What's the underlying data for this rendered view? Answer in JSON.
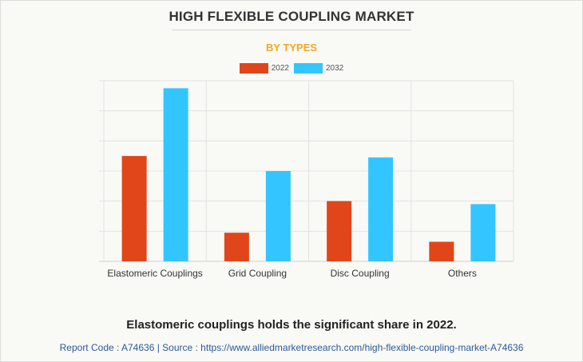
{
  "header": {
    "title": "HIGH FLEXIBLE COUPLING MARKET",
    "subtitle": "BY TYPES"
  },
  "chart_data": {
    "type": "bar",
    "categories": [
      "Elastomeric Couplings",
      "Grid Coupling",
      "Disc Coupling",
      "Others"
    ],
    "series": [
      {
        "name": "2022",
        "color": "#e0461a",
        "values": [
          3.5,
          0.95,
          2.0,
          0.65
        ]
      },
      {
        "name": "2032",
        "color": "#33c5ff",
        "values": [
          5.75,
          3.0,
          3.45,
          1.9
        ]
      }
    ],
    "ylim": [
      0,
      6
    ],
    "grid": true,
    "legend_position": "top-center",
    "xlabel": "",
    "ylabel": ""
  },
  "footer": {
    "caption": "Elastomeric couplings holds the significant share in 2022.",
    "source": "Report Code : A74636  |  Source : https://www.alliedmarketresearch.com/high-flexible-coupling-market-A74636"
  }
}
